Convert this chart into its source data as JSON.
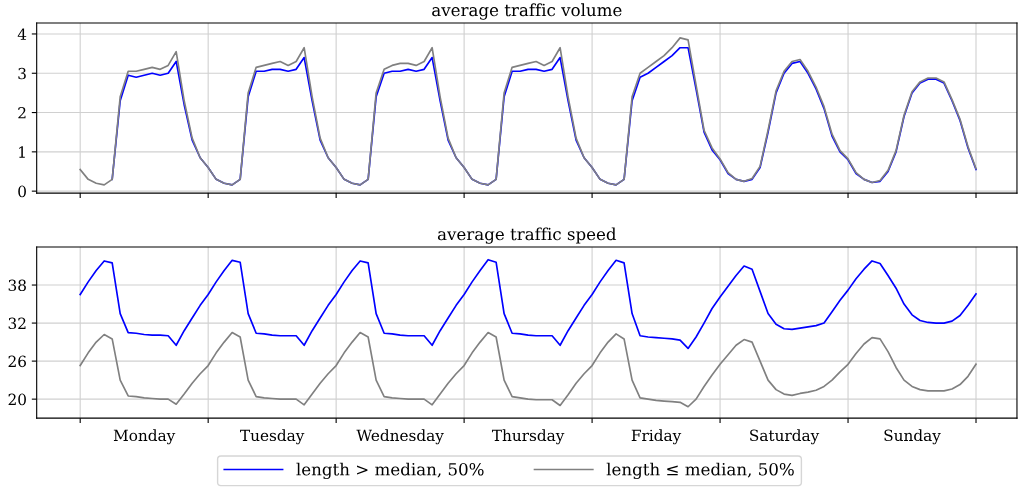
{
  "chart_data": [
    {
      "type": "line",
      "title": "average traffic volume",
      "tick_labels": "y",
      "grid": true,
      "categories": [
        null,
        null,
        null,
        null,
        null,
        null,
        null,
        null,
        null,
        null,
        null,
        null,
        null,
        null,
        null,
        null,
        null,
        null,
        null,
        null,
        null,
        null,
        null,
        null,
        null,
        null,
        null,
        null,
        null,
        null,
        null,
        null,
        null,
        null,
        null,
        null,
        null,
        null,
        null,
        null,
        null,
        null,
        null,
        null,
        null,
        null,
        null,
        null,
        null,
        null,
        null,
        null,
        null,
        null,
        null,
        null,
        null,
        null,
        null,
        null,
        null,
        null,
        null,
        null,
        null,
        null,
        null,
        null,
        null,
        null,
        null,
        null,
        null,
        null,
        null,
        null,
        null,
        null,
        null,
        null,
        null,
        null,
        null,
        null,
        null,
        null,
        null,
        null,
        null,
        null,
        null,
        null,
        null,
        null,
        null,
        null,
        null,
        null,
        null,
        null,
        null,
        null,
        null,
        null,
        null,
        null,
        null,
        null,
        null,
        null,
        null,
        null,
        null
      ],
      "ylim": [
        -0.05,
        4.28
      ],
      "yticks": [
        0,
        1,
        2,
        3,
        4
      ],
      "series": [
        {
          "color": "#0000ff",
          "values": [
            null,
            null,
            null,
            null,
            0.3,
            2.3,
            2.95,
            2.9,
            2.95,
            3.0,
            2.95,
            3.0,
            3.3,
            2.2,
            1.3,
            0.85,
            0.6,
            0.3,
            0.2,
            0.16,
            0.3,
            2.4,
            3.05,
            3.05,
            3.1,
            3.1,
            3.05,
            3.1,
            3.4,
            2.3,
            1.3,
            0.85,
            0.6,
            0.3,
            0.2,
            0.16,
            0.3,
            2.4,
            3.0,
            3.05,
            3.05,
            3.1,
            3.05,
            3.1,
            3.4,
            2.3,
            1.3,
            0.85,
            0.6,
            0.3,
            0.2,
            0.16,
            0.3,
            2.4,
            3.05,
            3.05,
            3.1,
            3.1,
            3.05,
            3.1,
            3.4,
            2.3,
            1.3,
            0.85,
            0.6,
            0.3,
            0.2,
            0.16,
            0.3,
            2.3,
            2.9,
            3.0,
            3.15,
            3.3,
            3.45,
            3.65,
            3.65,
            2.6,
            1.5,
            1.05,
            0.8,
            0.45,
            0.3,
            0.25,
            0.3,
            0.6,
            1.5,
            2.5,
            3.0,
            3.25,
            3.3,
            3.0,
            2.6,
            2.1,
            1.4,
            1.0,
            0.8,
            0.45,
            0.3,
            0.22,
            0.25,
            0.5,
            1.0,
            1.9,
            2.5,
            2.75,
            2.85,
            2.85,
            2.75,
            2.3,
            1.8,
            1.1,
            0.55
          ]
        },
        {
          "color": "#808080",
          "values": [
            0.55,
            0.3,
            0.2,
            0.16,
            0.3,
            2.4,
            3.05,
            3.05,
            3.1,
            3.15,
            3.1,
            3.2,
            3.55,
            2.3,
            1.35,
            0.85,
            0.6,
            0.3,
            0.2,
            0.16,
            0.3,
            2.5,
            3.15,
            3.2,
            3.25,
            3.3,
            3.2,
            3.3,
            3.65,
            2.4,
            1.35,
            0.85,
            0.6,
            0.3,
            0.2,
            0.16,
            0.3,
            2.5,
            3.1,
            3.2,
            3.25,
            3.25,
            3.2,
            3.3,
            3.65,
            2.4,
            1.35,
            0.85,
            0.6,
            0.3,
            0.2,
            0.16,
            0.3,
            2.5,
            3.15,
            3.2,
            3.25,
            3.3,
            3.2,
            3.3,
            3.65,
            2.4,
            1.35,
            0.85,
            0.6,
            0.3,
            0.2,
            0.16,
            0.3,
            2.4,
            3.0,
            3.15,
            3.3,
            3.45,
            3.65,
            3.9,
            3.85,
            2.7,
            1.55,
            1.1,
            0.82,
            0.47,
            0.3,
            0.25,
            0.32,
            0.63,
            1.55,
            2.55,
            3.05,
            3.3,
            3.35,
            3.05,
            2.65,
            2.15,
            1.45,
            1.03,
            0.82,
            0.47,
            0.3,
            0.22,
            0.27,
            0.53,
            1.03,
            1.93,
            2.53,
            2.78,
            2.88,
            2.88,
            2.78,
            2.33,
            1.83,
            1.13,
            0.57
          ]
        }
      ]
    },
    {
      "type": "line",
      "title": "average traffic speed",
      "grid": true,
      "legend": "bottom",
      "categories": [
        null,
        null,
        null,
        null,
        null,
        null,
        null,
        null,
        "Monday",
        null,
        null,
        null,
        null,
        null,
        null,
        null,
        null,
        null,
        null,
        null,
        null,
        null,
        null,
        null,
        "Tuesday",
        null,
        null,
        null,
        null,
        null,
        null,
        null,
        null,
        null,
        null,
        null,
        null,
        null,
        null,
        null,
        "Wednesday",
        null,
        null,
        null,
        null,
        null,
        null,
        null,
        null,
        null,
        null,
        null,
        null,
        null,
        null,
        null,
        "Thursday",
        null,
        null,
        null,
        null,
        null,
        null,
        null,
        null,
        null,
        null,
        null,
        null,
        null,
        null,
        null,
        "Friday",
        null,
        null,
        null,
        null,
        null,
        null,
        null,
        null,
        null,
        null,
        null,
        null,
        null,
        null,
        null,
        "Saturday",
        null,
        null,
        null,
        null,
        null,
        null,
        null,
        null,
        null,
        null,
        null,
        null,
        null,
        null,
        null,
        "Sunday",
        null,
        null,
        null,
        null,
        null,
        null,
        null,
        null
      ],
      "ylim": [
        17,
        44
      ],
      "yticks": [
        20,
        26,
        32,
        38
      ],
      "series": [
        {
          "name": "length > median, 50%",
          "color": "#0000ff",
          "values": [
            36.5,
            38.5,
            40.3,
            41.8,
            41.5,
            33.5,
            30.5,
            30.4,
            30.2,
            30.1,
            30.1,
            30.0,
            28.5,
            30.8,
            32.8,
            34.8,
            36.5,
            38.5,
            40.3,
            41.9,
            41.6,
            33.5,
            30.4,
            30.3,
            30.1,
            30.0,
            30.0,
            30.0,
            28.5,
            30.8,
            32.8,
            34.8,
            36.5,
            38.5,
            40.3,
            41.8,
            41.5,
            33.5,
            30.4,
            30.3,
            30.1,
            30.0,
            30.0,
            30.0,
            28.5,
            30.8,
            32.8,
            34.8,
            36.5,
            38.5,
            40.3,
            42.0,
            41.6,
            33.5,
            30.4,
            30.3,
            30.1,
            30.0,
            30.0,
            30.0,
            28.5,
            30.8,
            32.8,
            34.8,
            36.5,
            38.5,
            40.3,
            41.9,
            41.5,
            33.5,
            30.0,
            29.8,
            29.7,
            29.6,
            29.5,
            29.3,
            28.0,
            29.8,
            32.0,
            34.3,
            36.1,
            37.8,
            39.5,
            41.0,
            40.5,
            37.0,
            33.5,
            31.8,
            31.1,
            31.0,
            31.2,
            31.4,
            31.6,
            32.0,
            33.8,
            35.6,
            37.2,
            39.0,
            40.5,
            41.8,
            41.4,
            39.5,
            37.5,
            35.0,
            33.3,
            32.4,
            32.1,
            32.0,
            32.0,
            32.3,
            33.2,
            34.8,
            36.6
          ]
        },
        {
          "name": "length ≤ median, 50%",
          "color": "#808080",
          "values": [
            25.3,
            27.3,
            29.0,
            30.2,
            29.5,
            23.0,
            20.5,
            20.4,
            20.2,
            20.1,
            20.0,
            20.0,
            19.2,
            20.8,
            22.5,
            24.0,
            25.3,
            27.3,
            29.0,
            30.5,
            29.8,
            23.0,
            20.4,
            20.2,
            20.1,
            20.0,
            20.0,
            20.0,
            19.1,
            20.8,
            22.5,
            24.0,
            25.3,
            27.3,
            29.0,
            30.5,
            29.8,
            23.0,
            20.4,
            20.2,
            20.1,
            20.0,
            20.0,
            20.0,
            19.1,
            20.8,
            22.5,
            24.0,
            25.3,
            27.3,
            29.0,
            30.5,
            29.8,
            23.0,
            20.4,
            20.2,
            20.0,
            19.9,
            19.9,
            19.9,
            19.0,
            20.7,
            22.5,
            24.0,
            25.3,
            27.3,
            29.0,
            30.3,
            29.5,
            23.0,
            20.2,
            20.0,
            19.8,
            19.7,
            19.6,
            19.5,
            18.8,
            20.0,
            22.0,
            23.8,
            25.5,
            27.0,
            28.5,
            29.4,
            29.0,
            26.0,
            23.0,
            21.5,
            20.8,
            20.6,
            20.9,
            21.1,
            21.4,
            22.0,
            23.0,
            24.3,
            25.5,
            27.2,
            28.7,
            29.7,
            29.5,
            27.5,
            25.0,
            23.0,
            22.0,
            21.5,
            21.3,
            21.3,
            21.3,
            21.6,
            22.3,
            23.6,
            25.5
          ]
        }
      ]
    }
  ]
}
